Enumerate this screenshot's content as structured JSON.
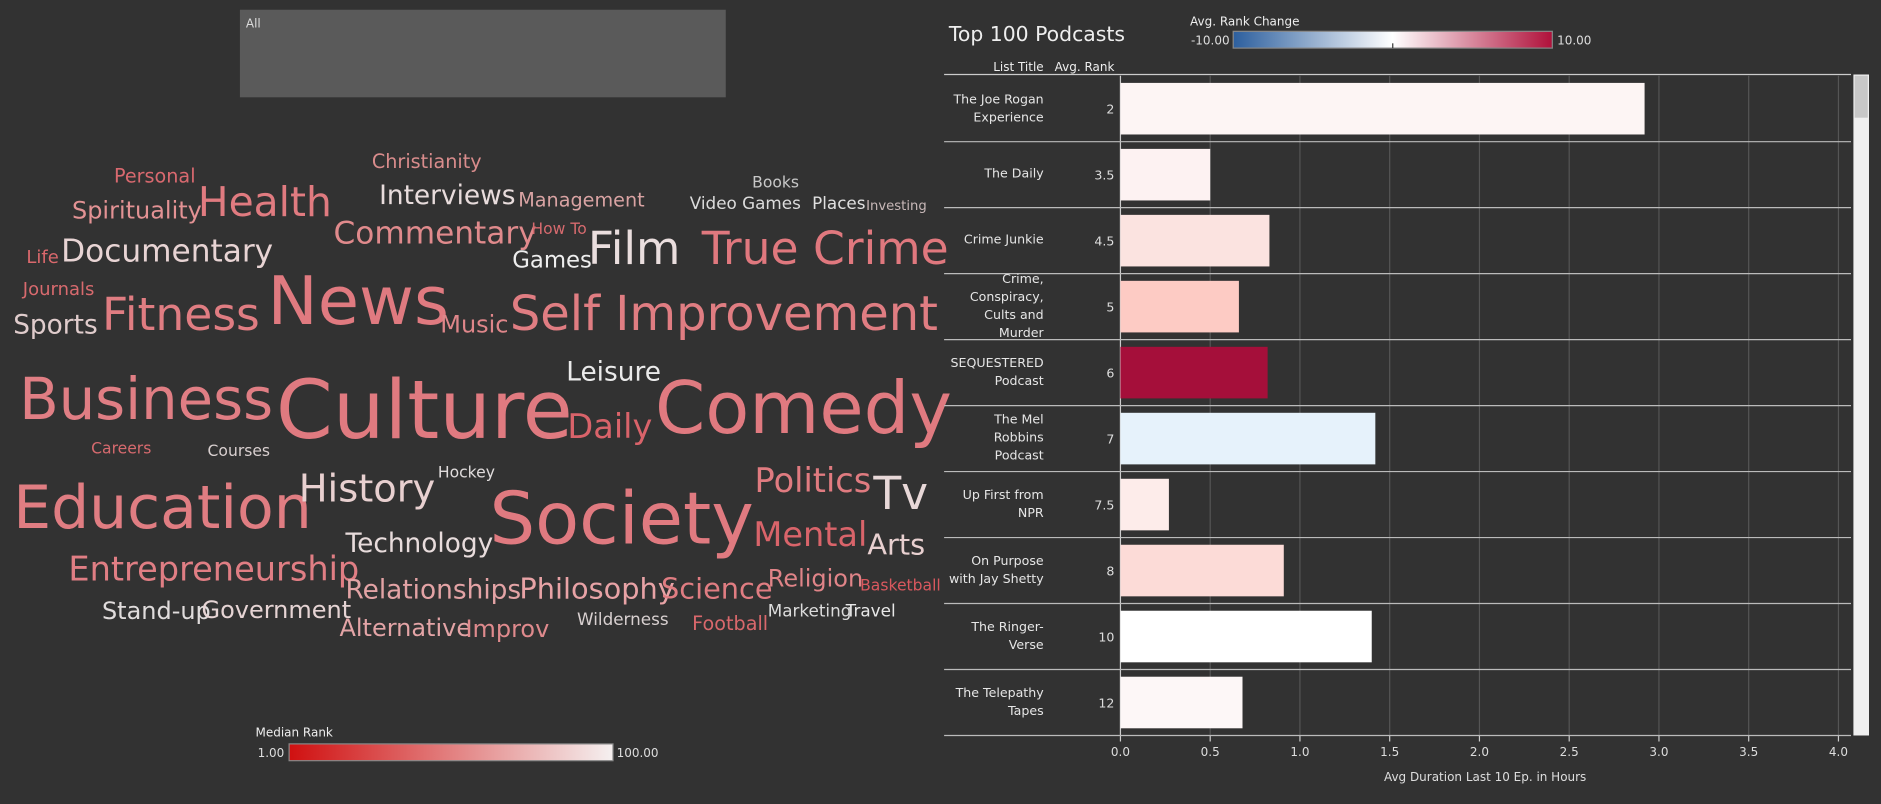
{
  "filter": {
    "value": "All"
  },
  "word_cloud": {
    "words": [
      {
        "text": "Personal",
        "color": "#d9696f"
      },
      {
        "text": "Christianity",
        "color": "#d98c8c"
      },
      {
        "text": "Books",
        "color": "#c8c8c8"
      },
      {
        "text": "Spirituality",
        "color": "#e39294"
      },
      {
        "text": "Health",
        "color": "#e07b80"
      },
      {
        "text": "Interviews",
        "color": "#e8dcdc"
      },
      {
        "text": "Management",
        "color": "#d9a3a3"
      },
      {
        "text": "Video Games",
        "color": "#dcdcdc"
      },
      {
        "text": "Places",
        "color": "#e0e0e0"
      },
      {
        "text": "Investing",
        "color": "#c8b8b8"
      },
      {
        "text": "Commentary",
        "color": "#e08a8c"
      },
      {
        "text": "How To",
        "color": "#d66a6e"
      },
      {
        "text": "Film",
        "color": "#eadede"
      },
      {
        "text": "True Crime",
        "color": "#e0787e"
      },
      {
        "text": "Life",
        "color": "#d9686c"
      },
      {
        "text": "Documentary",
        "color": "#e8d4d4"
      },
      {
        "text": "Games",
        "color": "#eeeeee"
      },
      {
        "text": "Journals",
        "color": "#d86a6e"
      },
      {
        "text": "News",
        "color": "#e07a80"
      },
      {
        "text": "Fitness",
        "color": "#e07d82"
      },
      {
        "text": "Music",
        "color": "#df868a"
      },
      {
        "text": "Self Improvement",
        "color": "#e07d82"
      },
      {
        "text": "Sports",
        "color": "#e0cccc"
      },
      {
        "text": "Leisure",
        "color": "#eaeaea"
      },
      {
        "text": "Business",
        "color": "#e07e84"
      },
      {
        "text": "Culture",
        "color": "#e07a80"
      },
      {
        "text": "Daily",
        "color": "#d9636a"
      },
      {
        "text": "Comedy",
        "color": "#e07a80"
      },
      {
        "text": "Careers",
        "color": "#d66a6e"
      },
      {
        "text": "Courses",
        "color": "#d8cfcf"
      },
      {
        "text": "Hockey",
        "color": "#e0dcdc"
      },
      {
        "text": "Education",
        "color": "#e07d82"
      },
      {
        "text": "History",
        "color": "#e8d0d0"
      },
      {
        "text": "Society",
        "color": "#e07a80"
      },
      {
        "text": "Politics",
        "color": "#e07b80"
      },
      {
        "text": "Tv",
        "color": "#e8d8d8"
      },
      {
        "text": "Technology",
        "color": "#e8dcdc"
      },
      {
        "text": "Mental",
        "color": "#d9646a"
      },
      {
        "text": "Arts",
        "color": "#e8d0d0"
      },
      {
        "text": "Entrepreneurship",
        "color": "#e07e84"
      },
      {
        "text": "Religion",
        "color": "#e08488"
      },
      {
        "text": "Basketball",
        "color": "#d9585e"
      },
      {
        "text": "Relationships",
        "color": "#e3a3a5"
      },
      {
        "text": "Philosophy",
        "color": "#e8a3a6"
      },
      {
        "text": "Science",
        "color": "#e07d82"
      },
      {
        "text": "Stand-up",
        "color": "#e0dcdc"
      },
      {
        "text": "Government",
        "color": "#e6d4d4"
      },
      {
        "text": "Alternative",
        "color": "#e3a4a6"
      },
      {
        "text": "Improv",
        "color": "#df8a8d"
      },
      {
        "text": "Wilderness",
        "color": "#d8d0d0"
      },
      {
        "text": "Football",
        "color": "#d9686c"
      },
      {
        "text": "Marketing",
        "color": "#dcdcdc"
      },
      {
        "text": "Travel",
        "color": "#e8e8e8"
      }
    ],
    "legend": {
      "title": "Median Rank",
      "min": {
        "value": 1,
        "label": "1.00"
      },
      "max": {
        "value": 100,
        "label": "100.00"
      },
      "colors": [
        "#d01010",
        "#f5f0f0"
      ]
    }
  },
  "chart_data": {
    "type": "bar",
    "orientation": "horizontal",
    "title": "Top 100 Podcasts",
    "column_headers": [
      "List Title",
      "Avg. Rank"
    ],
    "categories": [
      "The Joe Rogan Experience",
      "The Daily",
      "Crime Junkie",
      "Crime, Conspiracy, Cults and Murder",
      "SEQUESTERED Podcast",
      "The Mel Robbins Podcast",
      "Up First from NPR",
      "On Purpose with Jay Shetty",
      "The Ringer-Verse",
      "The Telepathy Tapes"
    ],
    "avg_rank": [
      2,
      3.5,
      4.5,
      5,
      6,
      7,
      7.5,
      8,
      10,
      12
    ],
    "values": [
      2.92,
      0.5,
      0.83,
      0.66,
      0.82,
      1.42,
      0.27,
      0.91,
      1.4,
      0.68
    ],
    "colors": [
      "#fdf5f4",
      "#fdf2f2",
      "#fbe3e0",
      "#fdcbc4",
      "#a50f3a",
      "#e6f2fb",
      "#fdecea",
      "#fcdbd7",
      "#ffffff",
      "#fdf7f7"
    ],
    "xlabel": "Avg Duration Last 10 Ep. in Hours",
    "xlim": [
      0,
      4.07
    ],
    "xticks": [
      {
        "value": 0,
        "label": "0.0"
      },
      {
        "value": 0.5,
        "label": "0.5"
      },
      {
        "value": 1,
        "label": "1.0"
      },
      {
        "value": 1.5,
        "label": "1.5"
      },
      {
        "value": 2,
        "label": "2.0"
      },
      {
        "value": 2.5,
        "label": "2.5"
      },
      {
        "value": 3,
        "label": "3.0"
      },
      {
        "value": 3.5,
        "label": "3.5"
      },
      {
        "value": 4,
        "label": "4.0"
      }
    ],
    "grid": true,
    "color_legend": {
      "title": "Avg. Rank Change",
      "min": {
        "value": -10,
        "label": "-10.00"
      },
      "max": {
        "value": 10,
        "label": "10.00"
      },
      "colors": [
        "#2c5f9e",
        "#ffffff",
        "#b0103a"
      ]
    }
  }
}
